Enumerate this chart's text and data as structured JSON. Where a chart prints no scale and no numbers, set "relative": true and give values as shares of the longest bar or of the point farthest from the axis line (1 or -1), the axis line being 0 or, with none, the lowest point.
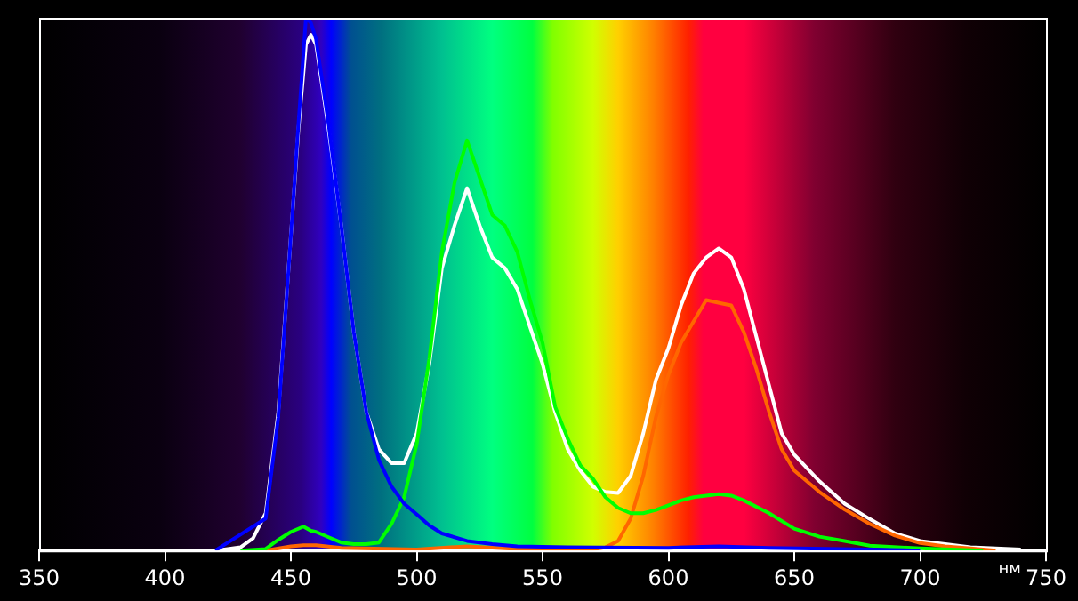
{
  "chart_data": {
    "type": "line",
    "relative": true,
    "xlabel": "нм",
    "xlim": [
      350,
      750
    ],
    "xticks": [
      350,
      400,
      450,
      500,
      550,
      600,
      650,
      700,
      750
    ],
    "grid": false,
    "legend": false,
    "marker": "none",
    "line_style": "solid",
    "series": [
      {
        "color": "#ffffff",
        "x": [
          420,
          430,
          435,
          440,
          445,
          450,
          453,
          456,
          458,
          460,
          465,
          470,
          475,
          480,
          485,
          490,
          495,
          500,
          505,
          510,
          515,
          520,
          525,
          530,
          535,
          540,
          545,
          550,
          555,
          560,
          565,
          570,
          575,
          580,
          585,
          590,
          595,
          600,
          605,
          610,
          615,
          620,
          625,
          630,
          635,
          640,
          645,
          650,
          660,
          670,
          680,
          690,
          700,
          710,
          720,
          730,
          740
        ],
        "values": [
          0,
          0.006,
          0.023,
          0.07,
          0.26,
          0.59,
          0.79,
          0.95,
          0.968,
          0.95,
          0.79,
          0.61,
          0.41,
          0.26,
          0.19,
          0.164,
          0.164,
          0.22,
          0.35,
          0.53,
          0.61,
          0.68,
          0.61,
          0.55,
          0.53,
          0.49,
          0.42,
          0.35,
          0.26,
          0.19,
          0.15,
          0.12,
          0.11,
          0.108,
          0.14,
          0.22,
          0.32,
          0.38,
          0.46,
          0.52,
          0.55,
          0.567,
          0.55,
          0.49,
          0.4,
          0.31,
          0.22,
          0.18,
          0.13,
          0.088,
          0.059,
          0.032,
          0.018,
          0.012,
          0.006,
          0.004,
          0.002
        ]
      },
      {
        "color": "#ff6600",
        "x": [
          440,
          450,
          455,
          460,
          470,
          500,
          520,
          540,
          560,
          570,
          575,
          580,
          585,
          590,
          595,
          600,
          605,
          610,
          615,
          621,
          625,
          630,
          635,
          640,
          645,
          650,
          660,
          670,
          680,
          690,
          700,
          710,
          720,
          730
        ],
        "values": [
          0,
          0.008,
          0.01,
          0.01,
          0.005,
          0.002,
          0.008,
          0.003,
          0,
          0.002,
          0.006,
          0.018,
          0.06,
          0.14,
          0.25,
          0.33,
          0.39,
          0.43,
          0.47,
          0.464,
          0.46,
          0.41,
          0.34,
          0.26,
          0.19,
          0.15,
          0.11,
          0.077,
          0.05,
          0.028,
          0.014,
          0.008,
          0.004,
          0
        ]
      },
      {
        "color": "#00ff00",
        "x": [
          430,
          440,
          445,
          450,
          455,
          458,
          460,
          465,
          470,
          475,
          480,
          485,
          490,
          495,
          500,
          505,
          510,
          515,
          520,
          525,
          530,
          535,
          540,
          545,
          550,
          555,
          560,
          565,
          570,
          575,
          580,
          585,
          590,
          595,
          600,
          605,
          610,
          620,
          625,
          630,
          640,
          650,
          660,
          670,
          680,
          700,
          725
        ],
        "values": [
          0,
          0.003,
          0.02,
          0.035,
          0.045,
          0.037,
          0.035,
          0.025,
          0.015,
          0.012,
          0.012,
          0.015,
          0.05,
          0.1,
          0.2,
          0.36,
          0.56,
          0.69,
          0.77,
          0.7,
          0.63,
          0.61,
          0.56,
          0.47,
          0.39,
          0.27,
          0.21,
          0.16,
          0.135,
          0.1,
          0.08,
          0.07,
          0.07,
          0.076,
          0.085,
          0.094,
          0.1,
          0.106,
          0.103,
          0.094,
          0.07,
          0.041,
          0.026,
          0.018,
          0.009,
          0.004,
          0
        ]
      },
      {
        "color": "#0000ff",
        "x": [
          420,
          440,
          445,
          450,
          453,
          456,
          458,
          460,
          465,
          470,
          475,
          480,
          485,
          490,
          495,
          500,
          505,
          510,
          520,
          530,
          540,
          560,
          600,
          620,
          640,
          680,
          700
        ],
        "values": [
          0,
          0.06,
          0.25,
          0.59,
          0.8,
          1,
          0.99,
          0.96,
          0.8,
          0.61,
          0.41,
          0.26,
          0.17,
          0.12,
          0.088,
          0.068,
          0.047,
          0.032,
          0.018,
          0.012,
          0.008,
          0.006,
          0.005,
          0.008,
          0.005,
          0.002,
          0
        ]
      }
    ]
  }
}
